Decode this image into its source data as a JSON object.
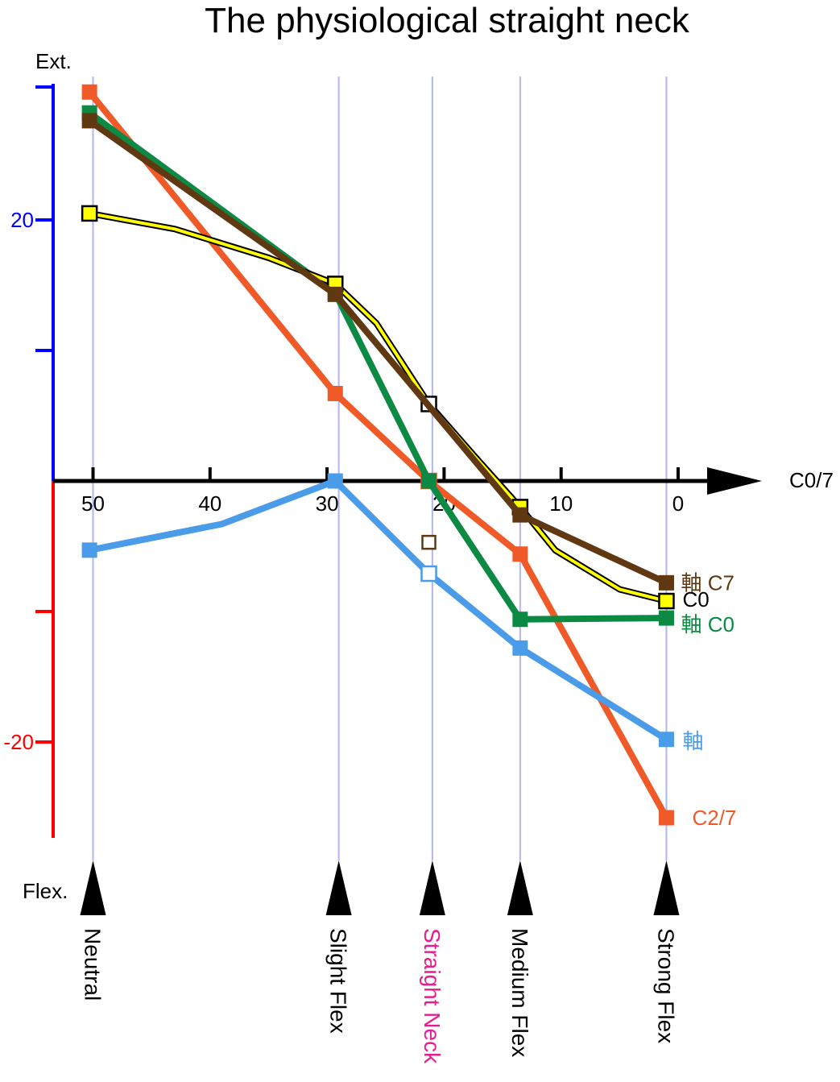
{
  "chart_data": {
    "type": "line",
    "title": "The physiological straight neck",
    "ylabel_top": "Ext.",
    "ylabel_bottom": "Flex.",
    "xlabel": "C0/7",
    "x_axis": {
      "reversed": true,
      "lim": [
        55,
        -5
      ],
      "ticks": [
        50,
        40,
        30,
        20,
        10,
        0
      ],
      "tick_labels": [
        "50",
        "40",
        "30",
        "20",
        "10",
        "0"
      ]
    },
    "y_axis": {
      "lim": [
        -28,
        31
      ],
      "ticks": [
        20,
        10,
        -10,
        -20
      ],
      "tick_labels": [
        "20",
        "",
        "",
        "-20"
      ],
      "positive_color": "#0000ff",
      "negative_color": "#ff0000"
    },
    "categories": [
      {
        "label": "Neutral",
        "x": 50,
        "color": "#000000"
      },
      {
        "label": "Slight Flex",
        "x": 29,
        "color": "#000000"
      },
      {
        "label": "Straight Neck",
        "x": 21,
        "color": "#e61e8c"
      },
      {
        "label": "Medium Flex",
        "x": 13.5,
        "color": "#000000"
      },
      {
        "label": "Strong Flex",
        "x": 1,
        "color": "#000000"
      }
    ],
    "series": [
      {
        "name": "C2/7",
        "color": "#f05a28",
        "points": [
          [
            50.3,
            29.8
          ],
          [
            29.3,
            6.7
          ],
          [
            21.3,
            0
          ],
          [
            13.5,
            -5.6
          ],
          [
            1,
            -25.8
          ]
        ],
        "hollow": [
          2
        ]
      },
      {
        "name": "軸 C0",
        "color": "#0c8a44",
        "points": [
          [
            50.3,
            28.2
          ],
          [
            29.3,
            14.4
          ],
          [
            21.3,
            0
          ],
          [
            13.5,
            -10.6
          ],
          [
            1,
            -10.5
          ]
        ],
        "hollow": []
      },
      {
        "name": "軸",
        "color": "#4a9be8",
        "points": [
          [
            50.3,
            -5.3
          ],
          [
            39,
            -3.3
          ],
          [
            29.3,
            0
          ],
          [
            21.3,
            -7.1
          ],
          [
            13.5,
            -12.8
          ],
          [
            1,
            -19.8
          ]
        ],
        "markers": [
          0,
          2,
          3,
          4,
          5
        ],
        "hollow": [
          3
        ]
      },
      {
        "name": "C0",
        "color": "#000000",
        "fill": "#ffff00",
        "outline": true,
        "points": [
          [
            50.3,
            20.5
          ],
          [
            43,
            19.3
          ],
          [
            35,
            17.1
          ],
          [
            29.3,
            15.1
          ],
          [
            25.8,
            12.1
          ],
          [
            21.3,
            5.9
          ],
          [
            17.3,
            1.8
          ],
          [
            13.5,
            -2
          ],
          [
            10.5,
            -5.3
          ],
          [
            5,
            -8.3
          ],
          [
            1,
            -9.2
          ]
        ],
        "markers": [
          0,
          3,
          5,
          7,
          10
        ],
        "hollow": [
          5
        ]
      },
      {
        "name": "軸 C7",
        "color": "#603913",
        "points": [
          [
            50.3,
            27.6
          ],
          [
            29.3,
            14.3
          ],
          [
            13.5,
            -2.6
          ],
          [
            1,
            -7.8
          ]
        ],
        "hollow": []
      }
    ],
    "extra_markers": [
      {
        "x": 21.3,
        "y": -4.7,
        "color": "#603913",
        "hollow": true
      }
    ],
    "end_labels": [
      {
        "text": "軸 C7",
        "series": "軸 C7",
        "color": "#603913"
      },
      {
        "text": "C0",
        "series": "C0",
        "color": "#000000"
      },
      {
        "text": "軸 C0",
        "series": "軸 C0",
        "color": "#0c8a44"
      },
      {
        "text": "軸",
        "series": "軸",
        "color": "#4a9be8"
      },
      {
        "text": "C2/7",
        "series": "C2/7",
        "color": "#f05a28"
      }
    ]
  }
}
